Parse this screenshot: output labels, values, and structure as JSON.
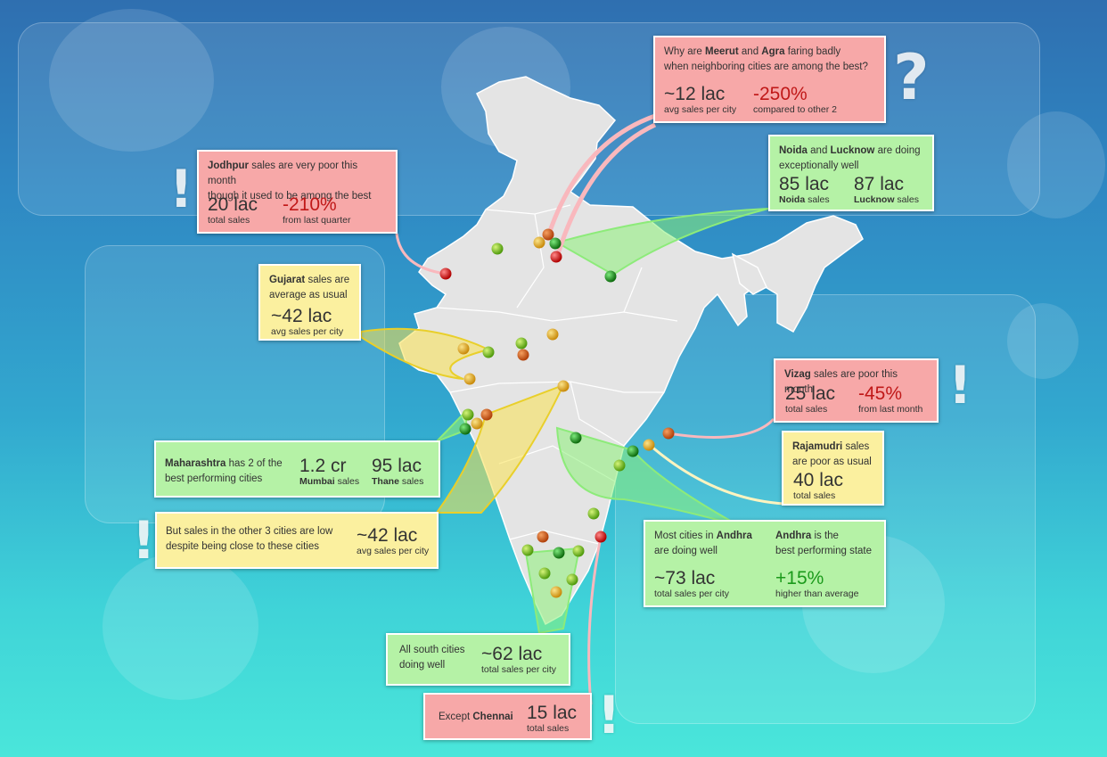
{
  "callouts": {
    "meerut_agra": {
      "pre": "Why are ",
      "city1": "Meerut",
      "mid": " and ",
      "city2": "Agra",
      "post": " faring badly",
      "line2": "when neighboring cities are among the best?",
      "stat1_value": "~12 lac",
      "stat1_label": "avg sales per city",
      "stat2_value": "-250%",
      "stat2_label": "compared to other 2"
    },
    "noida_lucknow": {
      "city1": "Noida",
      "mid": " and ",
      "city2": "Lucknow",
      "post": " are doing",
      "line2": "exceptionally well",
      "stat1_value": "85 lac",
      "stat1_bold": "Noida",
      "stat1_label": " sales",
      "stat2_value": "87 lac",
      "stat2_bold": "Lucknow",
      "stat2_label": " sales"
    },
    "jodhpur": {
      "city": "Jodhpur",
      "post": " sales are very poor this month",
      "line2": "though it used to be among the best",
      "stat1_value": "20 lac",
      "stat1_label": "total sales",
      "stat2_value": "-210%",
      "stat2_label": "from last quarter"
    },
    "gujarat": {
      "state": "Gujarat",
      "post": " sales are",
      "line2": "average as usual",
      "stat_value": "~42 lac",
      "stat_label": "avg sales per city"
    },
    "vizag": {
      "city": "Vizag",
      "post": " sales are poor this month",
      "stat1_value": "25 lac",
      "stat1_label": "total sales",
      "stat2_value": "-45%",
      "stat2_label": "from last month"
    },
    "rajamudri": {
      "city": "Rajamudri",
      "post": " sales",
      "line2": "are poor as usual",
      "stat_value": "40 lac",
      "stat_label": "total sales"
    },
    "maharashtra": {
      "state": "Maharashtra",
      "post": " has 2 of the",
      "line2": "best performing cities",
      "stat1_value": "1.2 cr",
      "stat1_bold": "Mumbai",
      "stat1_label": " sales",
      "stat2_value": "95 lac",
      "stat2_bold": "Thane",
      "stat2_label": " sales"
    },
    "maharashtra_other": {
      "line1": "But sales in the other 3 cities are low",
      "line2": "despite being close to these cities",
      "stat_value": "~42 lac",
      "stat_label": "avg sales per city"
    },
    "andhra": {
      "l1_pre": "Most cities in ",
      "l1_state": "Andhra",
      "l1_line2": "are doing well",
      "r1_state": "Andhra",
      "r1_post": " is the",
      "r1_line2": "best performing state",
      "stat1_value": "~73 lac",
      "stat1_label": "total sales per city",
      "stat2_value": "+15%",
      "stat2_label": "higher than average"
    },
    "south": {
      "line1": "All south cities",
      "line2": "doing well",
      "stat_value": "~62 lac",
      "stat_label": "total sales per city"
    },
    "chennai": {
      "pre": "Except ",
      "city": "Chennai",
      "stat_value": "15 lac",
      "stat_label": "total sales"
    }
  },
  "marks": {
    "exclaim": "!",
    "question": "?"
  },
  "colors": {
    "red": "#f7a8a8",
    "green": "#b5f2a6",
    "yellow": "#fbf09f",
    "negative": "#c01818",
    "positive": "#1b9a1b",
    "map": "#e4e4e4"
  },
  "city_markers": [
    {
      "name": "meerut",
      "status": "orange"
    },
    {
      "name": "agra",
      "status": "red"
    },
    {
      "name": "noida",
      "status": "green"
    },
    {
      "name": "delhi",
      "status": "yellow"
    },
    {
      "name": "lucknow",
      "status": "green"
    },
    {
      "name": "jodhpur",
      "status": "red"
    },
    {
      "name": "jaipur",
      "status": "lime"
    },
    {
      "name": "vizag",
      "status": "orange"
    },
    {
      "name": "rajamudri",
      "status": "yellow"
    },
    {
      "name": "mumbai",
      "status": "green"
    },
    {
      "name": "thane",
      "status": "green"
    },
    {
      "name": "chennai",
      "status": "red"
    }
  ]
}
